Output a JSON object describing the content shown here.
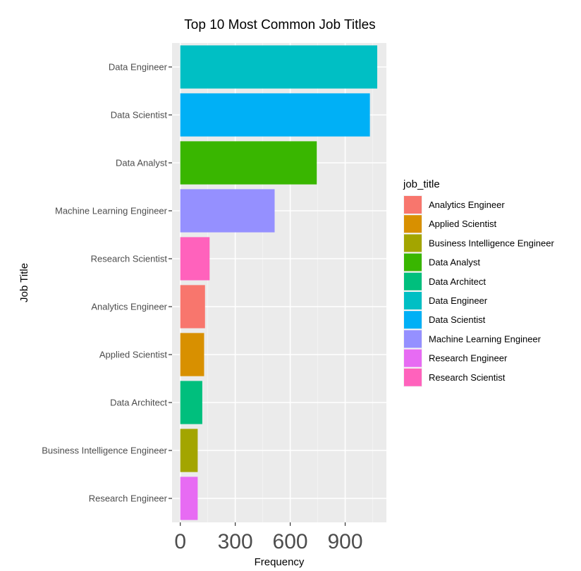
{
  "chart_data": {
    "type": "bar",
    "orientation": "horizontal",
    "title": "Top 10 Most Common Job Titles",
    "xlabel": "Frequency",
    "ylabel": "Job Title",
    "xlim": [
      -45,
      1125
    ],
    "xticks": [
      0,
      300,
      600,
      900
    ],
    "grid": true,
    "legend_position": "right",
    "legend_title": "job_title",
    "categories": [
      "Data Engineer",
      "Data Scientist",
      "Data Analyst",
      "Machine Learning Engineer",
      "Research Scientist",
      "Analytics Engineer",
      "Applied Scientist",
      "Data Architect",
      "Business Intelligence Engineer",
      "Research Engineer"
    ],
    "values": [
      1075,
      1035,
      745,
      515,
      160,
      135,
      130,
      120,
      95,
      95
    ],
    "bar_colors": [
      "#00BFC4",
      "#00B0F6",
      "#39B600",
      "#9590FF",
      "#FF62BC",
      "#F8766D",
      "#D89000",
      "#00BF7D",
      "#A3A500",
      "#E76BF3"
    ],
    "legend": [
      {
        "label": "Analytics Engineer",
        "color": "#F8766D"
      },
      {
        "label": "Applied Scientist",
        "color": "#D89000"
      },
      {
        "label": "Business Intelligence Engineer",
        "color": "#A3A500"
      },
      {
        "label": "Data Analyst",
        "color": "#39B600"
      },
      {
        "label": "Data Architect",
        "color": "#00BF7D"
      },
      {
        "label": "Data Engineer",
        "color": "#00BFC4"
      },
      {
        "label": "Data Scientist",
        "color": "#00B0F6"
      },
      {
        "label": "Machine Learning Engineer",
        "color": "#9590FF"
      },
      {
        "label": "Research Engineer",
        "color": "#E76BF3"
      },
      {
        "label": "Research Scientist",
        "color": "#FF62BC"
      }
    ]
  }
}
